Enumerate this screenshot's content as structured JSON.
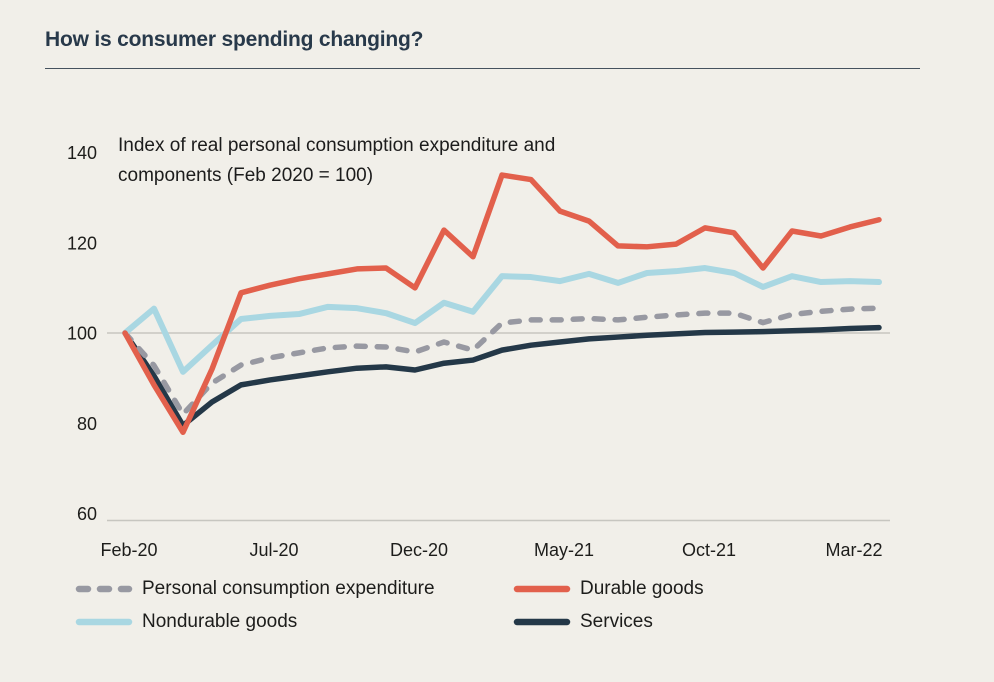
{
  "page": {
    "title": "How is consumer spending changing?"
  },
  "colors": {
    "background": "#f1efe9",
    "title": "#28394a",
    "rule": "#46525e",
    "text": "#1d1d1b",
    "grid": "#c7c6c0",
    "pce": "#9899a2",
    "durable": "#e2604c",
    "nondurable": "#a9d7e2",
    "services": "#243848"
  },
  "chart_data": {
    "type": "line",
    "title": "Index of real personal consumption expenditure and components (Feb 2020 = 100)",
    "subtitle_lines": [
      "Index of real personal consumption expenditure and",
      "components (Feb 2020 = 100)"
    ],
    "x": [
      "Feb-20",
      "Mar-20",
      "Apr-20",
      "May-20",
      "Jun-20",
      "Jul-20",
      "Aug-20",
      "Sep-20",
      "Oct-20",
      "Nov-20",
      "Dec-20",
      "Jan-21",
      "Feb-21",
      "Mar-21",
      "Apr-21",
      "May-21",
      "Jun-21",
      "Jul-21",
      "Aug-21",
      "Sep-21",
      "Oct-21",
      "Nov-21",
      "Dec-21",
      "Jan-22",
      "Feb-22",
      "Mar-22",
      "Apr-22"
    ],
    "x_tick_labels": [
      "Feb-20",
      "Jul-20",
      "Dec-20",
      "May-21",
      "Oct-21",
      "Mar-22"
    ],
    "x_tick_indices": [
      0,
      5,
      10,
      15,
      20,
      25
    ],
    "y_ticks": [
      60,
      80,
      100,
      120,
      140
    ],
    "ylim": [
      60,
      140
    ],
    "baseline_gridline": 100,
    "grid": "single horizontal gridline at 100 plus bottom axis line",
    "legend_position": "bottom",
    "series": [
      {
        "id": "pce",
        "name": "Personal consumption expenditure",
        "color": "#9899a2",
        "dashed": true,
        "width": 5.5,
        "values": [
          100,
          92.8,
          82.0,
          88.9,
          92.9,
          94.5,
          95.6,
          96.7,
          97.1,
          96.9,
          95.8,
          98.0,
          96.2,
          102.2,
          102.9,
          102.9,
          103.2,
          102.9,
          103.5,
          104.0,
          104.4,
          104.4,
          102.3,
          104.1,
          104.8,
          105.3,
          105.5
        ]
      },
      {
        "id": "durable",
        "name": "Durable goods",
        "color": "#e2604c",
        "dashed": false,
        "width": 5.5,
        "values": [
          100,
          88.5,
          78.0,
          92.0,
          108.9,
          110.6,
          112.0,
          113.1,
          114.2,
          114.4,
          110.0,
          122.8,
          116.9,
          135.0,
          134.0,
          127.0,
          124.8,
          119.3,
          119.1,
          119.7,
          123.3,
          122.2,
          114.4,
          122.6,
          121.5,
          123.5,
          125.1
        ]
      },
      {
        "id": "nondurable",
        "name": "Nondurable goods",
        "color": "#a9d7e2",
        "dashed": false,
        "width": 6,
        "values": [
          100,
          105.4,
          91.4,
          97.3,
          103.1,
          103.8,
          104.2,
          105.8,
          105.5,
          104.4,
          102.2,
          106.7,
          104.7,
          112.6,
          112.4,
          111.5,
          113.1,
          111.1,
          113.3,
          113.7,
          114.4,
          113.3,
          110.2,
          112.6,
          111.3,
          111.5,
          111.3
        ]
      },
      {
        "id": "services",
        "name": "Services",
        "color": "#243848",
        "dashed": false,
        "width": 5.5,
        "values": [
          100,
          90.5,
          79.5,
          84.7,
          88.5,
          89.6,
          90.5,
          91.4,
          92.2,
          92.5,
          91.8,
          93.3,
          94.0,
          96.2,
          97.3,
          98.0,
          98.7,
          99.1,
          99.5,
          99.8,
          100.1,
          100.2,
          100.3,
          100.5,
          100.7,
          101.0,
          101.2
        ]
      }
    ]
  }
}
